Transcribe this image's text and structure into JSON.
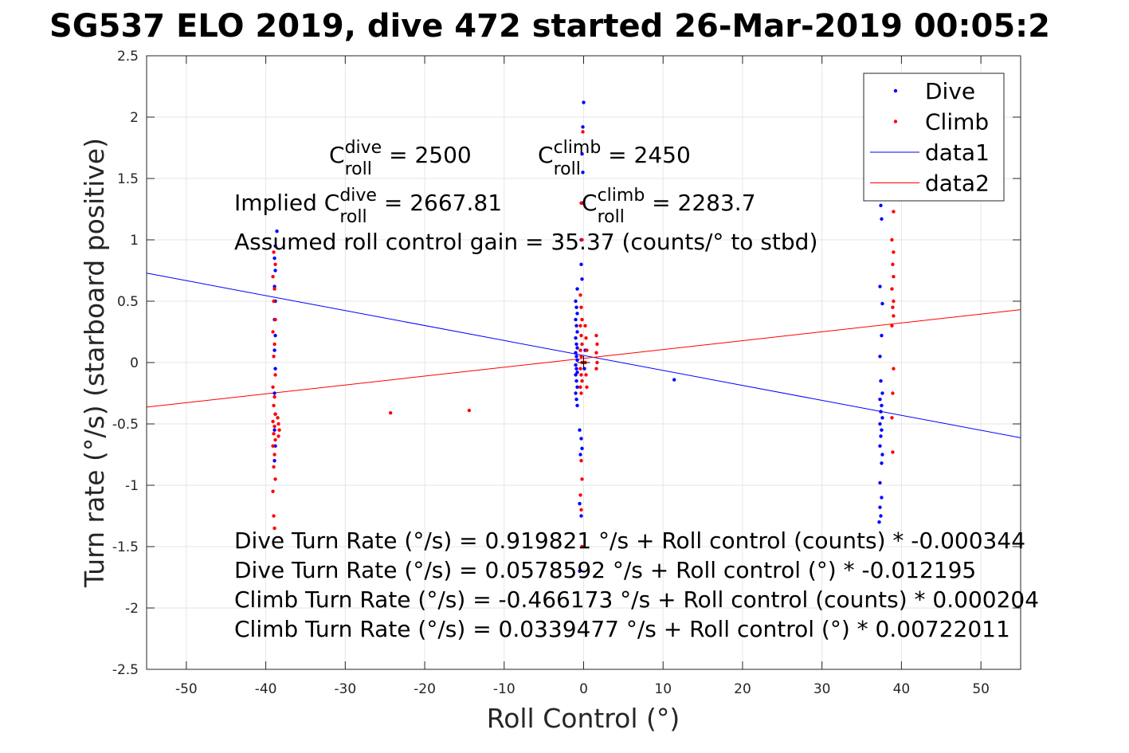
{
  "chart_data": {
    "type": "scatter",
    "title": "SG537 ELO 2019, dive 472 started 26-Mar-2019 00:05:2",
    "xlabel": "Roll Control (°)",
    "ylabel": "Turn rate (°/s) (starboard positive)",
    "xlim": [
      -55,
      55
    ],
    "ylim": [
      -2.5,
      2.5
    ],
    "xticks": [
      -50,
      -40,
      -30,
      -20,
      -10,
      0,
      10,
      20,
      30,
      40,
      50
    ],
    "yticks": [
      -2.5,
      -2,
      -1.5,
      -1,
      -0.5,
      0,
      0.5,
      1,
      1.5,
      2,
      2.5
    ],
    "grid": true,
    "legend_position": "top-right",
    "colors": {
      "dive": "#0000ff",
      "climb": "#ff0000",
      "axis": "#262626",
      "grid": "#e6e6e6"
    },
    "series": [
      {
        "name": "Dive",
        "kind": "points",
        "color": "#0000ff",
        "points": [
          [
            -38.6,
            1.07
          ],
          [
            -38.8,
            0.95
          ],
          [
            -38.9,
            0.85
          ],
          [
            -38.8,
            0.75
          ],
          [
            -38.9,
            0.62
          ],
          [
            -38.8,
            0.5
          ],
          [
            -38.9,
            0.35
          ],
          [
            -38.8,
            0.22
          ],
          [
            -38.9,
            0.1
          ],
          [
            -38.8,
            -0.05
          ],
          [
            -38.9,
            -0.25
          ],
          [
            -38.8,
            -0.42
          ],
          [
            -38.9,
            -0.55
          ],
          [
            -38.8,
            -0.68
          ],
          [
            -38.9,
            -0.8
          ],
          [
            -0.8,
            0.6
          ],
          [
            -1.0,
            0.5
          ],
          [
            -0.9,
            0.45
          ],
          [
            -0.8,
            0.4
          ],
          [
            -1.0,
            0.35
          ],
          [
            -0.9,
            0.3
          ],
          [
            -0.8,
            0.25
          ],
          [
            -1.0,
            0.2
          ],
          [
            -0.9,
            0.15
          ],
          [
            -0.8,
            0.12
          ],
          [
            -1.0,
            0.08
          ],
          [
            -0.9,
            0.05
          ],
          [
            -0.8,
            0.02
          ],
          [
            -1.0,
            -0.02
          ],
          [
            -0.9,
            -0.05
          ],
          [
            -0.8,
            -0.08
          ],
          [
            -1.0,
            -0.1
          ],
          [
            -0.9,
            -0.15
          ],
          [
            -0.8,
            -0.2
          ],
          [
            -1.0,
            -0.25
          ],
          [
            -0.9,
            -0.3
          ],
          [
            -0.8,
            -0.35
          ],
          [
            -0.5,
            -0.55
          ],
          [
            -0.3,
            -0.62
          ],
          [
            -0.2,
            -0.7
          ],
          [
            -0.4,
            -0.75
          ],
          [
            -0.3,
            1.0
          ],
          [
            -0.2,
            1.3
          ],
          [
            -0.1,
            1.55
          ],
          [
            -0.2,
            1.7
          ],
          [
            -0.1,
            1.92
          ],
          [
            0.0,
            2.12
          ],
          [
            -0.3,
            0.8
          ],
          [
            -0.2,
            0.68
          ],
          [
            -0.5,
            -1.15
          ],
          [
            -0.3,
            -1.25
          ],
          [
            -0.5,
            -1.7
          ],
          [
            0.2,
            0.1
          ],
          [
            0.1,
            -0.05
          ],
          [
            11.4,
            -0.14
          ],
          [
            37.4,
            1.28
          ],
          [
            37.5,
            1.17
          ],
          [
            37.3,
            0.62
          ],
          [
            37.6,
            0.48
          ],
          [
            37.5,
            0.22
          ],
          [
            37.3,
            0.05
          ],
          [
            37.4,
            -0.15
          ],
          [
            37.6,
            -0.25
          ],
          [
            37.3,
            -0.3
          ],
          [
            37.5,
            -0.35
          ],
          [
            37.4,
            -0.4
          ],
          [
            37.6,
            -0.45
          ],
          [
            37.3,
            -0.5
          ],
          [
            37.5,
            -0.55
          ],
          [
            37.4,
            -0.6
          ],
          [
            37.3,
            -0.68
          ],
          [
            37.6,
            -0.75
          ],
          [
            37.5,
            -0.82
          ],
          [
            37.3,
            -0.98
          ],
          [
            37.5,
            -1.1
          ],
          [
            37.3,
            -1.18
          ],
          [
            37.4,
            -1.25
          ],
          [
            37.2,
            -1.3
          ]
        ]
      },
      {
        "name": "Climb",
        "kind": "points",
        "color": "#ff0000",
        "points": [
          [
            -39.0,
            0.9
          ],
          [
            -38.8,
            0.8
          ],
          [
            -39.1,
            0.7
          ],
          [
            -38.9,
            0.6
          ],
          [
            -39.0,
            0.5
          ],
          [
            -38.8,
            0.35
          ],
          [
            -39.1,
            0.25
          ],
          [
            -38.9,
            0.15
          ],
          [
            -39.0,
            0.05
          ],
          [
            -38.8,
            -0.1
          ],
          [
            -39.1,
            -0.2
          ],
          [
            -38.9,
            -0.28
          ],
          [
            -39.0,
            -0.35
          ],
          [
            -38.8,
            -0.42
          ],
          [
            -39.1,
            -0.48
          ],
          [
            -38.9,
            -0.52
          ],
          [
            -39.0,
            -0.58
          ],
          [
            -38.8,
            -0.63
          ],
          [
            -39.1,
            -0.68
          ],
          [
            -38.9,
            -0.75
          ],
          [
            -39.0,
            -0.85
          ],
          [
            -38.8,
            -0.95
          ],
          [
            -39.1,
            -1.05
          ],
          [
            -39.0,
            -1.25
          ],
          [
            -38.9,
            -1.35
          ],
          [
            -38.5,
            -0.45
          ],
          [
            -38.4,
            -0.5
          ],
          [
            -38.3,
            -0.55
          ],
          [
            -38.4,
            -0.6
          ],
          [
            -24.3,
            -0.41
          ],
          [
            -14.4,
            -0.39
          ],
          [
            -0.4,
            0.55
          ],
          [
            -0.3,
            0.45
          ],
          [
            -0.2,
            0.35
          ],
          [
            -0.4,
            0.3
          ],
          [
            -0.3,
            0.22
          ],
          [
            -0.2,
            0.15
          ],
          [
            -0.4,
            0.1
          ],
          [
            -0.3,
            0.05
          ],
          [
            -0.2,
            0.0
          ],
          [
            -0.4,
            -0.05
          ],
          [
            -0.3,
            -0.1
          ],
          [
            -0.2,
            -0.15
          ],
          [
            -0.4,
            -0.2
          ],
          [
            -0.3,
            -0.25
          ],
          [
            0.2,
            0.3
          ],
          [
            0.3,
            0.2
          ],
          [
            0.4,
            0.1
          ],
          [
            0.2,
            0.0
          ],
          [
            0.3,
            -0.1
          ],
          [
            0.4,
            -0.2
          ],
          [
            1.6,
            0.22
          ],
          [
            1.7,
            0.15
          ],
          [
            1.6,
            0.08
          ],
          [
            1.7,
            0.0
          ],
          [
            1.6,
            -0.05
          ],
          [
            -0.2,
            1.0
          ],
          [
            -0.3,
            1.3
          ],
          [
            -0.1,
            1.88
          ],
          [
            -0.3,
            -0.8
          ],
          [
            -0.2,
            -0.95
          ],
          [
            -0.4,
            -1.08
          ],
          [
            -0.3,
            -1.2
          ],
          [
            -0.2,
            -1.5
          ],
          [
            39.0,
            1.23
          ],
          [
            38.8,
            1.0
          ],
          [
            39.0,
            0.9
          ],
          [
            38.9,
            0.8
          ],
          [
            39.0,
            0.7
          ],
          [
            38.8,
            0.6
          ],
          [
            39.0,
            0.5
          ],
          [
            38.9,
            0.45
          ],
          [
            39.0,
            0.38
          ],
          [
            38.8,
            0.3
          ],
          [
            39.0,
            -0.05
          ],
          [
            38.9,
            -0.25
          ],
          [
            38.8,
            -0.45
          ],
          [
            38.9,
            -0.73
          ]
        ]
      },
      {
        "name": "data1",
        "kind": "line",
        "color": "#0000ff",
        "x": [
          -55,
          55
        ],
        "y": [
          0.7286,
          -0.613
        ]
      },
      {
        "name": "data2",
        "kind": "line",
        "color": "#ff0000",
        "x": [
          -55,
          55
        ],
        "y": [
          -0.3632,
          0.4311
        ]
      }
    ],
    "annotations": [
      {
        "kind": "coef",
        "prefix": "",
        "base": "C",
        "sup": "dive",
        "sub": "roll",
        "rest": " = 2500"
      },
      {
        "kind": "coef",
        "prefix": "",
        "base": "C",
        "sup": "climb",
        "sub": "roll",
        "rest": " = 2450"
      },
      {
        "kind": "coef",
        "prefix": "Implied ",
        "base": "C",
        "sup": "dive",
        "sub": "roll",
        "rest": " = 2667.81"
      },
      {
        "kind": "coef",
        "prefix": "",
        "base": "C",
        "sup": "climb",
        "sub": "roll",
        "rest": " = 2283.7"
      },
      {
        "kind": "text",
        "text": "Assumed roll control gain = 35.37 (counts/° to stbd)"
      },
      {
        "kind": "text",
        "text": "Dive Turn Rate (°/s) = 0.919821 °/s + Roll control (counts) * -0.000344"
      },
      {
        "kind": "text",
        "text": "Dive Turn Rate (°/s) = 0.0578592 °/s + Roll control (°) * -0.012195"
      },
      {
        "kind": "text",
        "text": "Climb Turn Rate (°/s) = -0.466173 °/s + Roll control (counts) * 0.000204"
      },
      {
        "kind": "text",
        "text": "Climb Turn Rate (°/s) = 0.0339477 °/s + Roll control (°) * 0.00722011"
      }
    ]
  }
}
